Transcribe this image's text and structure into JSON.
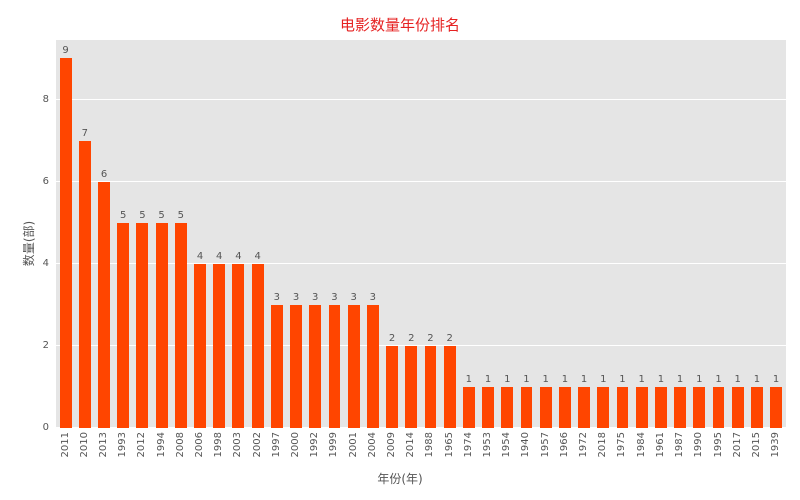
{
  "colors": {
    "bar": "#ff4500",
    "title": "#e62222",
    "plot_background": "#e5e5e5",
    "gridline": "#ffffff",
    "tick_text": "#555555"
  },
  "chart_data": {
    "type": "bar",
    "title": "电影数量年份排名",
    "xlabel": "年份(年)",
    "ylabel": "数量(部)",
    "ylim": [
      0,
      9.45
    ],
    "yticks": [
      0,
      2,
      4,
      6,
      8
    ],
    "grid": "horizontal white gridlines on gray plot background",
    "legend": "none",
    "bar_color": "#ff4500",
    "value_labels_shown": true,
    "categories": [
      "2011",
      "2010",
      "2013",
      "1993",
      "2012",
      "1994",
      "2008",
      "2006",
      "1998",
      "2003",
      "2002",
      "1997",
      "2000",
      "1992",
      "1999",
      "2001",
      "2004",
      "2009",
      "2014",
      "1988",
      "1965",
      "1974",
      "1953",
      "1954",
      "1940",
      "1957",
      "1966",
      "1972",
      "2018",
      "1975",
      "1984",
      "1961",
      "1987",
      "1990",
      "1995",
      "2017",
      "2015",
      "1939"
    ],
    "values": [
      9,
      7,
      6,
      5,
      5,
      5,
      5,
      4,
      4,
      4,
      4,
      3,
      3,
      3,
      3,
      3,
      3,
      2,
      2,
      2,
      2,
      1,
      1,
      1,
      1,
      1,
      1,
      1,
      1,
      1,
      1,
      1,
      1,
      1,
      1,
      1,
      1,
      1
    ]
  }
}
